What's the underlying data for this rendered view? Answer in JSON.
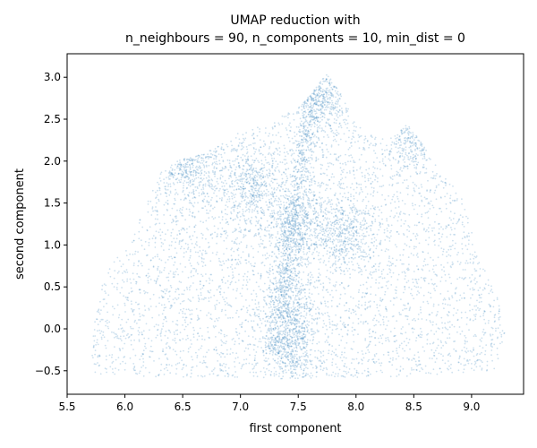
{
  "chart_data": {
    "type": "scatter",
    "title_line1": "UMAP reduction with",
    "title_line2": "n_neighbours = 90, n_components = 10, min_dist = 0",
    "xlabel": "first component",
    "ylabel": "second component",
    "xlim": [
      5.5,
      9.45
    ],
    "ylim": [
      -0.78,
      3.28
    ],
    "xticks": [
      5.5,
      6.0,
      6.5,
      7.0,
      7.5,
      8.0,
      8.5,
      9.0
    ],
    "xtick_labels": [
      "5.5",
      "6.0",
      "6.5",
      "7.0",
      "7.5",
      "8.0",
      "8.5",
      "9.0"
    ],
    "yticks": [
      -0.5,
      0.0,
      0.5,
      1.0,
      1.5,
      2.0,
      2.5,
      3.0
    ],
    "ytick_labels": [
      "−0.5",
      "0.0",
      "0.5",
      "1.0",
      "1.5",
      "2.0",
      "2.5",
      "3.0"
    ],
    "grid": false,
    "marker_color": "#1f77b4",
    "point_cloud": {
      "x_range": [
        5.68,
        9.32
      ],
      "y_range": [
        -0.58,
        3.05
      ],
      "outline": [
        [
          5.7,
          -0.55
        ],
        [
          5.75,
          0.3
        ],
        [
          5.85,
          0.7
        ],
        [
          6.05,
          1.05
        ],
        [
          6.3,
          1.85
        ],
        [
          6.45,
          2.0
        ],
        [
          6.7,
          2.1
        ],
        [
          7.0,
          2.35
        ],
        [
          7.3,
          2.5
        ],
        [
          7.55,
          2.7
        ],
        [
          7.75,
          3.05
        ],
        [
          7.85,
          2.85
        ],
        [
          8.0,
          2.45
        ],
        [
          8.25,
          2.25
        ],
        [
          8.45,
          2.45
        ],
        [
          8.6,
          2.15
        ],
        [
          8.95,
          1.5
        ],
        [
          9.05,
          0.9
        ],
        [
          9.25,
          0.3
        ],
        [
          9.3,
          -0.05
        ],
        [
          9.2,
          -0.5
        ],
        [
          8.8,
          -0.55
        ],
        [
          7.5,
          -0.6
        ],
        [
          6.5,
          -0.58
        ],
        [
          5.8,
          -0.55
        ]
      ],
      "dense_clusters": [
        {
          "center": [
            7.45,
            -0.05
          ],
          "note": "vertical band 7.3–7.6"
        },
        {
          "center": [
            7.1,
            1.7
          ]
        },
        {
          "center": [
            7.7,
            2.75
          ]
        },
        {
          "center": [
            8.5,
            2.35
          ]
        },
        {
          "center": [
            6.55,
            1.95
          ]
        },
        {
          "center": [
            7.9,
            1.15
          ]
        },
        {
          "center": [
            7.5,
            1.25
          ]
        }
      ]
    }
  }
}
